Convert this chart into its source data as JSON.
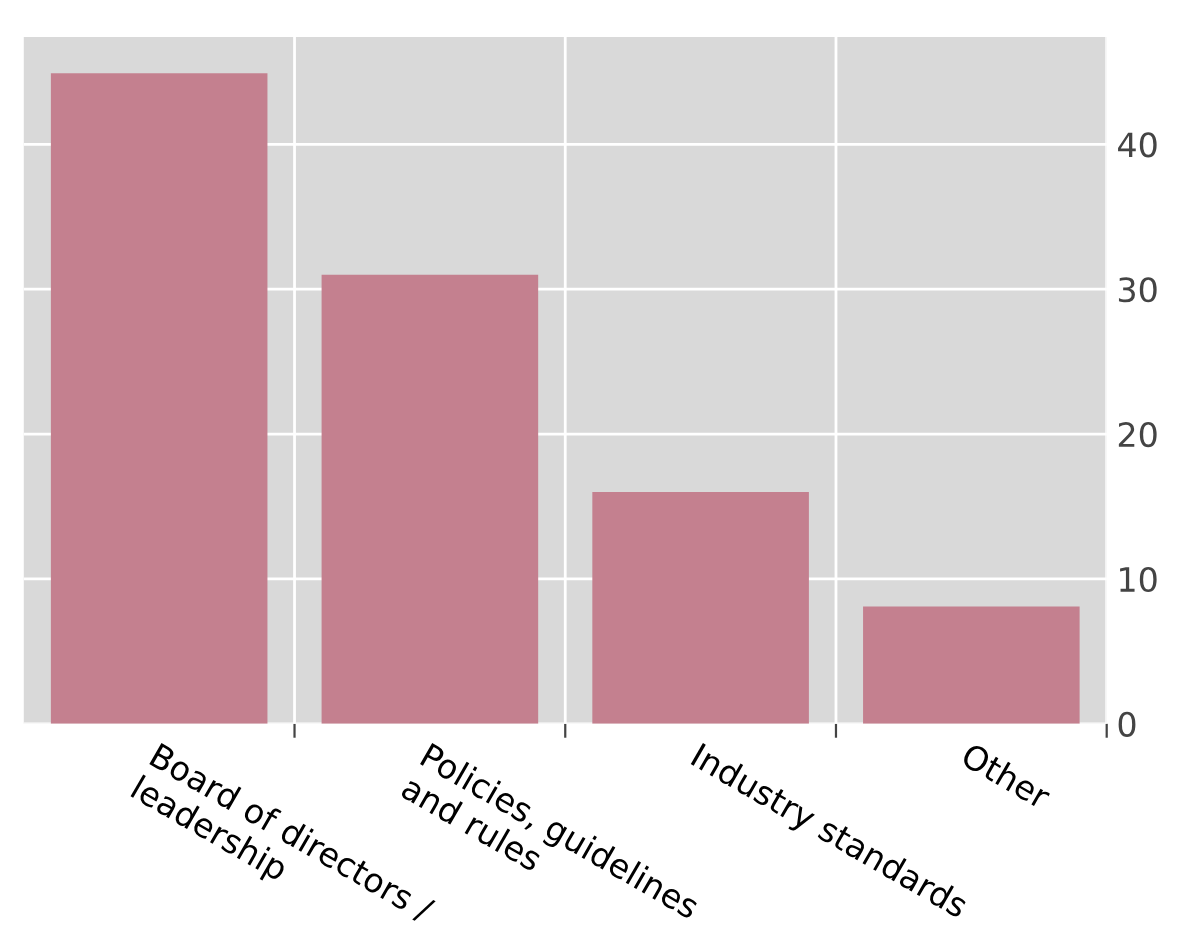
{
  "chart_data": {
    "type": "bar",
    "categories": [
      "Board of directors /\nleadership",
      "Policies, guidelines\nand rules",
      "Industry standards",
      "Other"
    ],
    "values": [
      44.9,
      31.0,
      16.0,
      8.1
    ],
    "color": "#c4808f",
    "ylim": [
      0,
      47.4
    ],
    "yticks": [
      0,
      10,
      20,
      30,
      40
    ],
    "grid": true
  }
}
